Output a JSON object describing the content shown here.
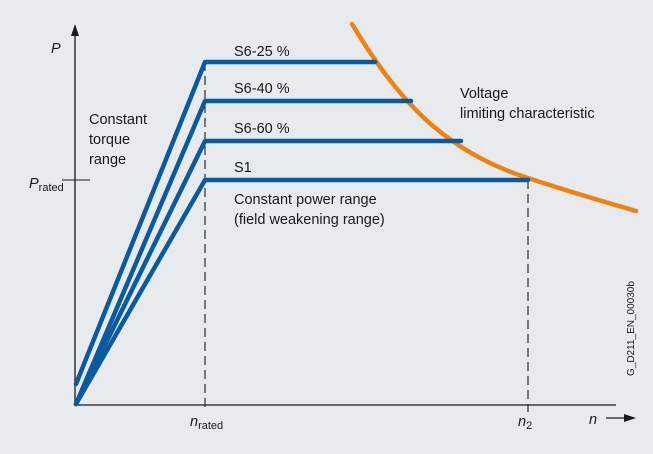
{
  "axes": {
    "y_label": "P",
    "x_label": "n",
    "p_rated_main": "P",
    "p_rated_sub": "rated",
    "n_rated_main": "n",
    "n_rated_sub": "rated",
    "n2_main": "n",
    "n2_sub": "2"
  },
  "regions": {
    "constant_torque": [
      "Constant",
      "torque",
      "range"
    ],
    "constant_power": [
      "Constant power range",
      "(field weakening range)"
    ]
  },
  "curves": {
    "voltage_limit": [
      "Voltage",
      "limiting characteristic"
    ]
  },
  "duty_levels": [
    {
      "label": "S6-25 %"
    },
    {
      "label": "S6-40 %"
    },
    {
      "label": "S6-60 %"
    },
    {
      "label": "S1"
    }
  ],
  "figure_id": "G_D211_EN_00030b",
  "colors": {
    "panel": "#e7ebee",
    "power_lines": "#0a5aa0",
    "voltage_curve": "#f0820f",
    "axis": "#1a1a1a"
  }
}
